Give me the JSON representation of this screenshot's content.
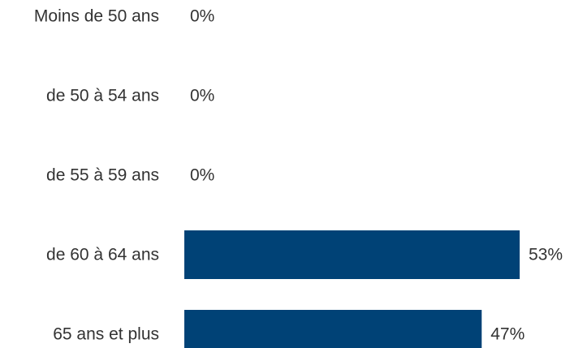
{
  "chart_data": {
    "type": "bar",
    "orientation": "horizontal",
    "categories": [
      "Moins de 50 ans",
      "de 50 à 54 ans",
      "de 55 à 59 ans",
      "de 60 à 64 ans",
      "65 ans et plus"
    ],
    "values": [
      0,
      0,
      0,
      53,
      47
    ],
    "value_labels": [
      "0%",
      "0%",
      "0%",
      "53%",
      "47%"
    ],
    "unit": "%",
    "xlim": [
      0,
      53
    ],
    "grid": false,
    "legend": "none",
    "bar_color": "#004276",
    "text_color": "#333333"
  }
}
